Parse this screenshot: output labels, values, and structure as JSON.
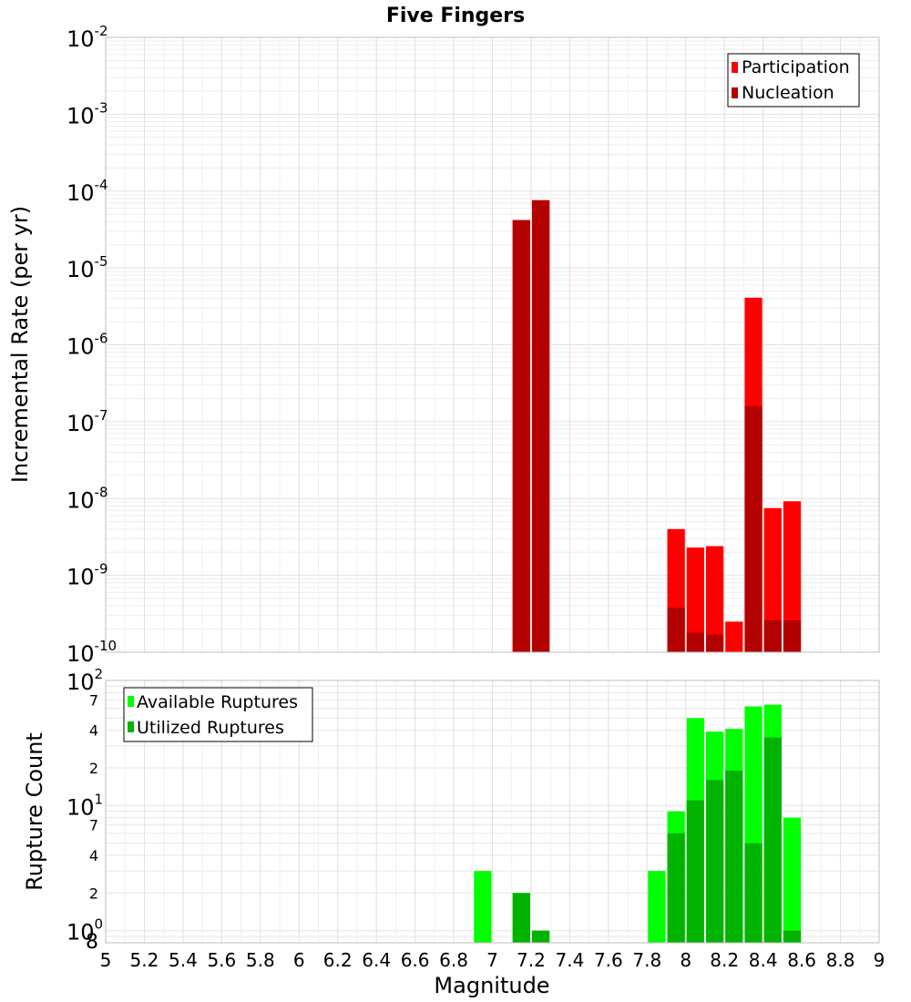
{
  "chart_data": [
    {
      "type": "bar",
      "title": "Five Fingers",
      "xlabel": "",
      "ylabel": "Incremental Rate (per yr)",
      "xlim": [
        5,
        9
      ],
      "ylim": [
        1e-10,
        0.01
      ],
      "yscale": "log",
      "grid": true,
      "legend_placement": "top-right",
      "x_ticks": [
        "5",
        "5.2",
        "5.4",
        "5.6",
        "5.8",
        "6",
        "6.2",
        "6.4",
        "6.6",
        "6.8",
        "7",
        "7.2",
        "7.4",
        "7.6",
        "7.8",
        "8",
        "8.2",
        "8.4",
        "8.6",
        "8.8",
        "9"
      ],
      "y_ticks": [
        {
          "base": "10",
          "exp": "-2",
          "value": 0.01
        },
        {
          "base": "10",
          "exp": "-3",
          "value": 0.001
        },
        {
          "base": "10",
          "exp": "-4",
          "value": 0.0001
        },
        {
          "base": "10",
          "exp": "-5",
          "value": 1e-05
        },
        {
          "base": "10",
          "exp": "-6",
          "value": 1e-06
        },
        {
          "base": "10",
          "exp": "-7",
          "value": 1e-07
        },
        {
          "base": "10",
          "exp": "-8",
          "value": 1e-08
        },
        {
          "base": "10",
          "exp": "-9",
          "value": 1e-09
        },
        {
          "base": "10",
          "exp": "-10",
          "value": 1e-10
        }
      ],
      "series": [
        {
          "name": "Participation",
          "color": "#ff0000",
          "points": [
            {
              "x": 7.15,
              "y": 4.2e-05
            },
            {
              "x": 7.25,
              "y": 7.6e-05
            },
            {
              "x": 7.95,
              "y": 4e-09
            },
            {
              "x": 8.05,
              "y": 2.3e-09
            },
            {
              "x": 8.15,
              "y": 2.4e-09
            },
            {
              "x": 8.25,
              "y": 2.5e-10
            },
            {
              "x": 8.35,
              "y": 4.1e-06
            },
            {
              "x": 8.45,
              "y": 7.5e-09
            },
            {
              "x": 8.55,
              "y": 9.2e-09
            }
          ]
        },
        {
          "name": "Nucleation",
          "color": "#b30000",
          "points": [
            {
              "x": 7.15,
              "y": 4.2e-05
            },
            {
              "x": 7.25,
              "y": 7.6e-05
            },
            {
              "x": 7.95,
              "y": 3.8e-10
            },
            {
              "x": 8.05,
              "y": 1.8e-10
            },
            {
              "x": 8.15,
              "y": 1.7e-10
            },
            {
              "x": 8.35,
              "y": 1.6e-07
            },
            {
              "x": 8.45,
              "y": 2.6e-10
            },
            {
              "x": 8.55,
              "y": 2.6e-10
            }
          ]
        }
      ]
    },
    {
      "type": "bar",
      "title": "",
      "xlabel": "Magnitude",
      "ylabel": "Rupture Count",
      "xlim": [
        5,
        9
      ],
      "ylim": [
        0.8,
        100
      ],
      "yscale": "log",
      "grid": true,
      "legend_placement": "top-left",
      "x_ticks": [
        "5",
        "5.2",
        "5.4",
        "5.6",
        "5.8",
        "6",
        "6.2",
        "6.4",
        "6.6",
        "6.8",
        "7",
        "7.2",
        "7.4",
        "7.6",
        "7.8",
        "8",
        "8.2",
        "8.4",
        "8.6",
        "8.8",
        "9"
      ],
      "y_major_ticks": [
        {
          "base": "10",
          "exp": "2",
          "value": 100
        },
        {
          "base": "10",
          "exp": "1",
          "value": 10
        },
        {
          "base": "10",
          "exp": "0",
          "value": 1
        }
      ],
      "y_minor_ticks": [
        {
          "label": "7",
          "value": 70
        },
        {
          "label": "4",
          "value": 40
        },
        {
          "label": "2",
          "value": 20
        },
        {
          "label": "7",
          "value": 7
        },
        {
          "label": "4",
          "value": 4
        },
        {
          "label": "2",
          "value": 2
        },
        {
          "label": "8",
          "value": 0.8
        }
      ],
      "series": [
        {
          "name": "Available Ruptures",
          "color": "#00ff00",
          "points": [
            {
              "x": 6.95,
              "y": 3
            },
            {
              "x": 7.15,
              "y": 2
            },
            {
              "x": 7.25,
              "y": 1
            },
            {
              "x": 7.85,
              "y": 3
            },
            {
              "x": 7.95,
              "y": 9
            },
            {
              "x": 8.05,
              "y": 50
            },
            {
              "x": 8.15,
              "y": 39
            },
            {
              "x": 8.25,
              "y": 41
            },
            {
              "x": 8.35,
              "y": 62
            },
            {
              "x": 8.45,
              "y": 64
            },
            {
              "x": 8.55,
              "y": 8
            }
          ]
        },
        {
          "name": "Utilized Ruptures",
          "color": "#00b300",
          "points": [
            {
              "x": 7.15,
              "y": 2
            },
            {
              "x": 7.25,
              "y": 1
            },
            {
              "x": 7.95,
              "y": 6
            },
            {
              "x": 8.05,
              "y": 11
            },
            {
              "x": 8.15,
              "y": 16
            },
            {
              "x": 8.25,
              "y": 19
            },
            {
              "x": 8.35,
              "y": 5
            },
            {
              "x": 8.45,
              "y": 35
            },
            {
              "x": 8.55,
              "y": 1
            }
          ]
        }
      ]
    }
  ]
}
